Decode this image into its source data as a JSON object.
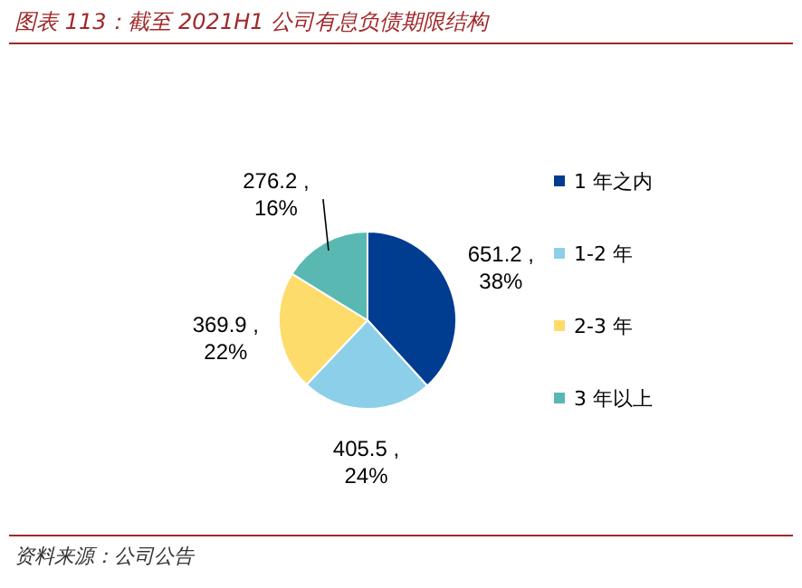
{
  "chart_data": {
    "type": "pie",
    "title": "图表 113：截至 2021H1 公司有息负债期限结构",
    "categories": [
      "1 年之内",
      "1-2 年",
      "2-3 年",
      "3 年以上"
    ],
    "values": [
      651.2,
      405.5,
      369.9,
      276.2
    ],
    "colors": [
      "#003c8f",
      "#8ccfe8",
      "#fddc6c",
      "#5ab8b2"
    ],
    "value_labels": [
      "651.2 , 38%",
      "405.5 , 24%",
      "369.9 , 22%",
      "276.2 , 16%"
    ],
    "legend": "right",
    "annotations": [
      "资料来源：公司公告"
    ]
  }
}
